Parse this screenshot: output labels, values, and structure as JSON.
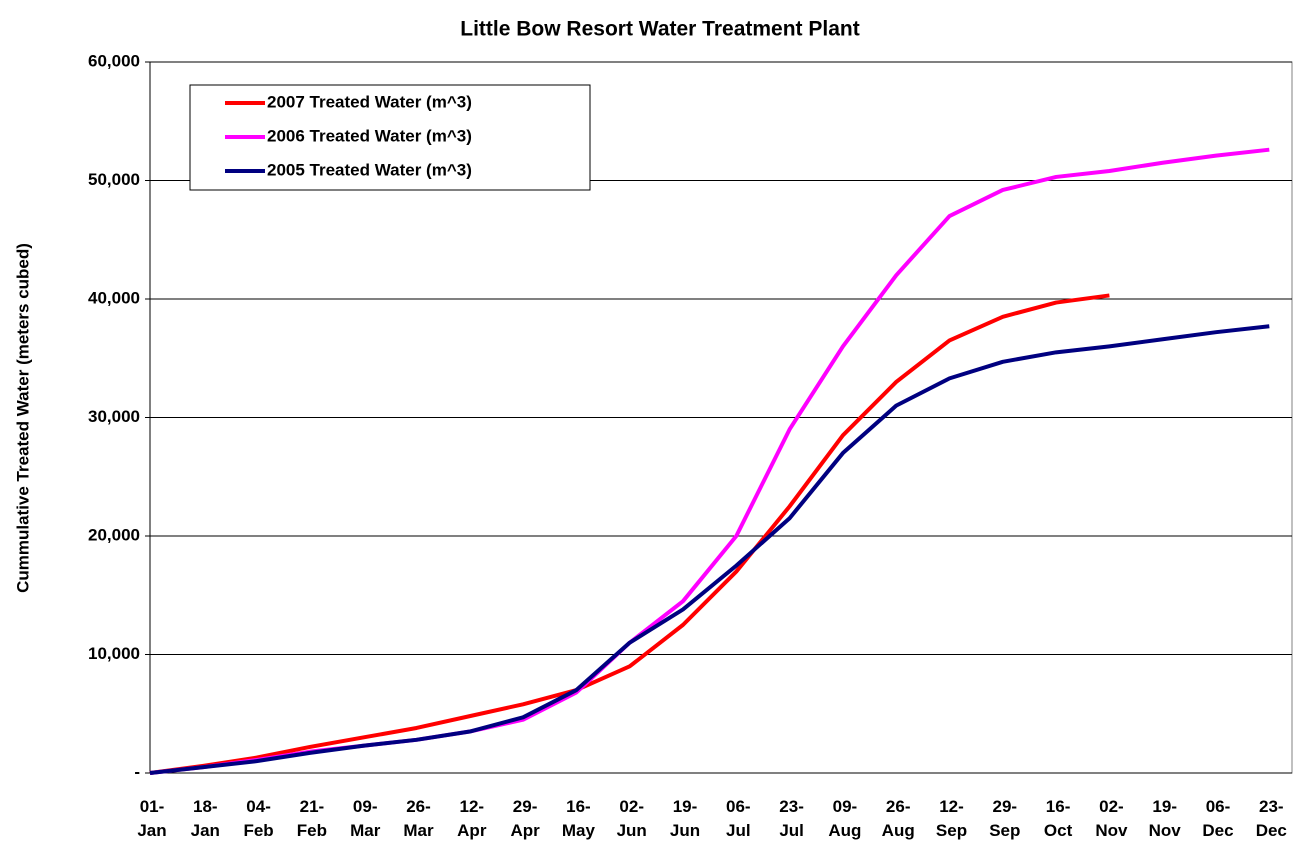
{
  "chart_data": {
    "type": "line",
    "title": "Little Bow Resort Water Treatment Plant",
    "y_label": "Cummulative Treated Water (meters cubed)",
    "categories": [
      "01-Jan",
      "18-Jan",
      "04-Feb",
      "21-Feb",
      "09-Mar",
      "26-Mar",
      "12-Apr",
      "29-Apr",
      "16-May",
      "02-Jun",
      "19-Jun",
      "06-Jul",
      "23-Jul",
      "09-Aug",
      "26-Aug",
      "12-Sep",
      "29-Sep",
      "16-Oct",
      "02-Nov",
      "19-Nov",
      "06-Dec",
      "23-Dec"
    ],
    "series": [
      {
        "name": "2007 Treated Water (m^3)",
        "color": "#ff0000",
        "values": [
          0,
          600,
          1300,
          2200,
          3000,
          3800,
          4800,
          5800,
          7000,
          9000,
          12500,
          17000,
          22500,
          28500,
          33000,
          36500,
          38500,
          39700,
          40300,
          null,
          null,
          null
        ]
      },
      {
        "name": "2006 Treated Water (m^3)",
        "color": "#ff00ff",
        "values": [
          0,
          500,
          1100,
          1800,
          2300,
          2800,
          3500,
          4500,
          6800,
          11000,
          14500,
          20000,
          29000,
          36000,
          42000,
          47000,
          49200,
          50300,
          50800,
          51500,
          52100,
          52600
        ]
      },
      {
        "name": "2005 Treated Water (m^3)",
        "color": "#000080",
        "values": [
          0,
          500,
          1000,
          1700,
          2300,
          2800,
          3500,
          4700,
          7000,
          11000,
          13800,
          17500,
          21500,
          27000,
          31000,
          33300,
          34700,
          35500,
          36000,
          36600,
          37200,
          37700
        ]
      }
    ],
    "ylim": [
      0,
      60000
    ],
    "yticks": [
      {
        "value": 0,
        "label": "-"
      },
      {
        "value": 10000,
        "label": "10,000"
      },
      {
        "value": 20000,
        "label": "20,000"
      },
      {
        "value": 30000,
        "label": "30,000"
      },
      {
        "value": 40000,
        "label": "40,000"
      },
      {
        "value": 50000,
        "label": "50,000"
      },
      {
        "value": 60000,
        "label": "60,000"
      }
    ],
    "grid": true,
    "legend": "top-left"
  }
}
